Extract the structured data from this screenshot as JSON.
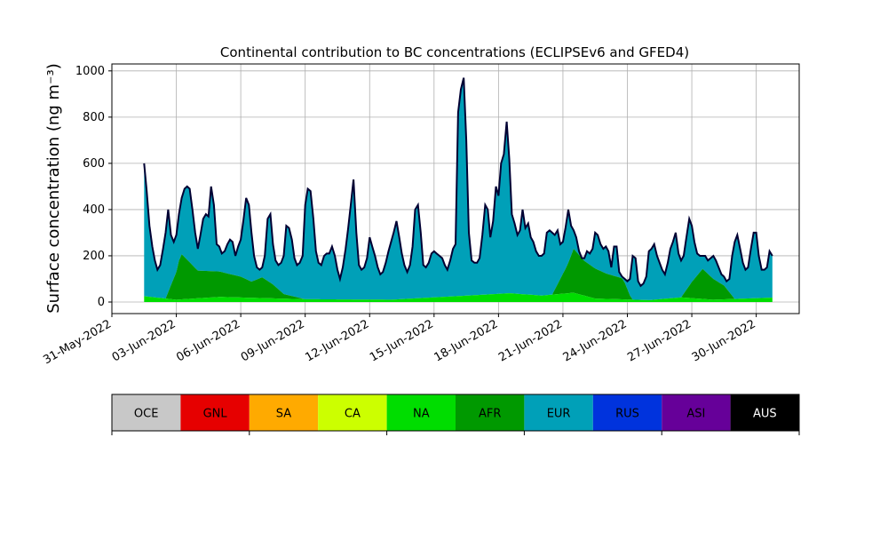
{
  "chart_data": {
    "type": "area",
    "stacked": true,
    "title": "Continental contribution to BC concentrations (ECLIPSEv6 and GFED4)",
    "ylabel": "Surface concentration (ng m⁻³)",
    "xlabel": "",
    "ylim": [
      -50,
      1030
    ],
    "yticks": [
      0,
      200,
      400,
      600,
      800,
      1000
    ],
    "grid": true,
    "x_dates": {
      "start": "2022-06-01T12:00",
      "end": "2022-07-01T12:00",
      "axis_start": "2022-05-31T00:00",
      "axis_end": "2022-07-02T00:00"
    },
    "xtick_labels": [
      "31-May-2022",
      "03-Jun-2022",
      "06-Jun-2022",
      "09-Jun-2022",
      "12-Jun-2022",
      "15-Jun-2022",
      "18-Jun-2022",
      "21-Jun-2022",
      "24-Jun-2022",
      "27-Jun-2022",
      "30-Jun-2022"
    ],
    "xtick_dates": [
      "2022-05-31",
      "2022-06-03",
      "2022-06-06",
      "2022-06-09",
      "2022-06-12",
      "2022-06-15",
      "2022-06-18",
      "2022-06-21",
      "2022-06-24",
      "2022-06-27",
      "2022-06-30"
    ],
    "total_line_color": "#000033",
    "series": [
      {
        "name": "NA",
        "color": "#00dd00",
        "values_by_day": [
          [
            1.5,
            25
          ],
          [
            3.0,
            10
          ],
          [
            5.0,
            22
          ],
          [
            9.0,
            12
          ],
          [
            13.0,
            10
          ],
          [
            17.0,
            30
          ],
          [
            18.5,
            38
          ],
          [
            20.0,
            28
          ],
          [
            21.5,
            40
          ],
          [
            22.5,
            15
          ],
          [
            25.0,
            8
          ],
          [
            26.5,
            20
          ],
          [
            28.0,
            10
          ],
          [
            30.5,
            18
          ],
          [
            31.5,
            22
          ]
        ]
      },
      {
        "name": "AFR",
        "color": "#009900",
        "values_by_day": [
          [
            1.5,
            0
          ],
          [
            2.5,
            0
          ],
          [
            3.0,
            120
          ],
          [
            3.2,
            200
          ],
          [
            3.5,
            170
          ],
          [
            4.0,
            120
          ],
          [
            5.0,
            110
          ],
          [
            6.0,
            90
          ],
          [
            6.5,
            70
          ],
          [
            7.0,
            90
          ],
          [
            7.5,
            60
          ],
          [
            8.0,
            20
          ],
          [
            9.0,
            0
          ],
          [
            20.5,
            0
          ],
          [
            21.2,
            120
          ],
          [
            21.5,
            190
          ],
          [
            22.0,
            150
          ],
          [
            23.0,
            110
          ],
          [
            23.8,
            90
          ],
          [
            24.2,
            0
          ],
          [
            26.5,
            0
          ],
          [
            27.0,
            70
          ],
          [
            27.5,
            130
          ],
          [
            28.0,
            90
          ],
          [
            28.5,
            60
          ],
          [
            29.0,
            0
          ],
          [
            31.5,
            0
          ]
        ]
      },
      {
        "name": "EUR",
        "color": "#00a0b8",
        "values_by_day": []
      }
    ],
    "total_by_day": [
      [
        1.5,
        600
      ],
      [
        1.62,
        480
      ],
      [
        1.75,
        330
      ],
      [
        1.88,
        240
      ],
      [
        2.0,
        180
      ],
      [
        2.12,
        140
      ],
      [
        2.25,
        160
      ],
      [
        2.38,
        230
      ],
      [
        2.5,
        300
      ],
      [
        2.62,
        400
      ],
      [
        2.75,
        290
      ],
      [
        2.88,
        260
      ],
      [
        3.0,
        290
      ],
      [
        3.12,
        380
      ],
      [
        3.25,
        450
      ],
      [
        3.38,
        490
      ],
      [
        3.5,
        500
      ],
      [
        3.62,
        490
      ],
      [
        3.75,
        400
      ],
      [
        3.88,
        300
      ],
      [
        4.0,
        230
      ],
      [
        4.12,
        290
      ],
      [
        4.25,
        360
      ],
      [
        4.38,
        380
      ],
      [
        4.5,
        370
      ],
      [
        4.62,
        500
      ],
      [
        4.75,
        420
      ],
      [
        4.88,
        250
      ],
      [
        5.0,
        240
      ],
      [
        5.12,
        210
      ],
      [
        5.25,
        220
      ],
      [
        5.38,
        250
      ],
      [
        5.5,
        270
      ],
      [
        5.62,
        260
      ],
      [
        5.75,
        200
      ],
      [
        5.88,
        240
      ],
      [
        6.0,
        270
      ],
      [
        6.12,
        350
      ],
      [
        6.25,
        450
      ],
      [
        6.38,
        420
      ],
      [
        6.5,
        300
      ],
      [
        6.62,
        200
      ],
      [
        6.75,
        150
      ],
      [
        6.88,
        140
      ],
      [
        7.0,
        150
      ],
      [
        7.12,
        200
      ],
      [
        7.25,
        360
      ],
      [
        7.38,
        380
      ],
      [
        7.5,
        250
      ],
      [
        7.62,
        180
      ],
      [
        7.75,
        160
      ],
      [
        7.88,
        170
      ],
      [
        8.0,
        200
      ],
      [
        8.12,
        330
      ],
      [
        8.25,
        320
      ],
      [
        8.38,
        270
      ],
      [
        8.5,
        190
      ],
      [
        8.62,
        160
      ],
      [
        8.75,
        170
      ],
      [
        8.88,
        200
      ],
      [
        9.0,
        420
      ],
      [
        9.12,
        490
      ],
      [
        9.25,
        480
      ],
      [
        9.38,
        360
      ],
      [
        9.5,
        220
      ],
      [
        9.62,
        170
      ],
      [
        9.75,
        160
      ],
      [
        9.88,
        200
      ],
      [
        10.0,
        210
      ],
      [
        10.12,
        210
      ],
      [
        10.25,
        240
      ],
      [
        10.38,
        200
      ],
      [
        10.5,
        140
      ],
      [
        10.62,
        100
      ],
      [
        10.75,
        150
      ],
      [
        10.88,
        230
      ],
      [
        11.0,
        320
      ],
      [
        11.12,
        420
      ],
      [
        11.25,
        530
      ],
      [
        11.38,
        300
      ],
      [
        11.5,
        160
      ],
      [
        11.62,
        140
      ],
      [
        11.75,
        150
      ],
      [
        11.88,
        190
      ],
      [
        12.0,
        280
      ],
      [
        12.12,
        240
      ],
      [
        12.25,
        200
      ],
      [
        12.38,
        150
      ],
      [
        12.5,
        120
      ],
      [
        12.62,
        130
      ],
      [
        12.75,
        170
      ],
      [
        12.88,
        220
      ],
      [
        13.0,
        260
      ],
      [
        13.12,
        300
      ],
      [
        13.25,
        350
      ],
      [
        13.38,
        280
      ],
      [
        13.5,
        210
      ],
      [
        13.62,
        160
      ],
      [
        13.75,
        130
      ],
      [
        13.88,
        160
      ],
      [
        14.0,
        240
      ],
      [
        14.12,
        400
      ],
      [
        14.25,
        420
      ],
      [
        14.38,
        300
      ],
      [
        14.5,
        160
      ],
      [
        14.62,
        150
      ],
      [
        14.75,
        170
      ],
      [
        14.88,
        210
      ],
      [
        15.0,
        220
      ],
      [
        15.12,
        210
      ],
      [
        15.25,
        200
      ],
      [
        15.38,
        190
      ],
      [
        15.5,
        160
      ],
      [
        15.62,
        140
      ],
      [
        15.75,
        180
      ],
      [
        15.88,
        230
      ],
      [
        16.0,
        250
      ],
      [
        16.12,
        820
      ],
      [
        16.25,
        920
      ],
      [
        16.38,
        970
      ],
      [
        16.5,
        700
      ],
      [
        16.62,
        300
      ],
      [
        16.75,
        180
      ],
      [
        16.88,
        170
      ],
      [
        17.0,
        170
      ],
      [
        17.12,
        190
      ],
      [
        17.25,
        290
      ],
      [
        17.38,
        420
      ],
      [
        17.5,
        400
      ],
      [
        17.62,
        280
      ],
      [
        17.75,
        350
      ],
      [
        17.88,
        500
      ],
      [
        18.0,
        460
      ],
      [
        18.12,
        600
      ],
      [
        18.25,
        640
      ],
      [
        18.38,
        780
      ],
      [
        18.5,
        620
      ],
      [
        18.62,
        380
      ],
      [
        18.75,
        340
      ],
      [
        18.88,
        290
      ],
      [
        19.0,
        310
      ],
      [
        19.12,
        400
      ],
      [
        19.25,
        320
      ],
      [
        19.38,
        340
      ],
      [
        19.5,
        280
      ],
      [
        19.62,
        260
      ],
      [
        19.75,
        220
      ],
      [
        19.88,
        200
      ],
      [
        20.0,
        200
      ],
      [
        20.12,
        210
      ],
      [
        20.25,
        300
      ],
      [
        20.38,
        310
      ],
      [
        20.5,
        300
      ],
      [
        20.62,
        290
      ],
      [
        20.75,
        310
      ],
      [
        20.88,
        250
      ],
      [
        21.0,
        260
      ],
      [
        21.12,
        320
      ],
      [
        21.25,
        400
      ],
      [
        21.38,
        330
      ],
      [
        21.5,
        310
      ],
      [
        21.62,
        280
      ],
      [
        21.75,
        220
      ],
      [
        21.88,
        190
      ],
      [
        22.0,
        190
      ],
      [
        22.12,
        220
      ],
      [
        22.25,
        210
      ],
      [
        22.38,
        230
      ],
      [
        22.5,
        300
      ],
      [
        22.62,
        290
      ],
      [
        22.75,
        250
      ],
      [
        22.88,
        230
      ],
      [
        23.0,
        240
      ],
      [
        23.12,
        220
      ],
      [
        23.25,
        150
      ],
      [
        23.38,
        240
      ],
      [
        23.5,
        240
      ],
      [
        23.62,
        130
      ],
      [
        23.75,
        110
      ],
      [
        23.88,
        100
      ],
      [
        24.0,
        90
      ],
      [
        24.12,
        100
      ],
      [
        24.25,
        200
      ],
      [
        24.38,
        190
      ],
      [
        24.5,
        90
      ],
      [
        24.62,
        70
      ],
      [
        24.75,
        80
      ],
      [
        24.88,
        110
      ],
      [
        25.0,
        220
      ],
      [
        25.12,
        230
      ],
      [
        25.25,
        250
      ],
      [
        25.38,
        200
      ],
      [
        25.5,
        170
      ],
      [
        25.62,
        140
      ],
      [
        25.75,
        120
      ],
      [
        25.88,
        170
      ],
      [
        26.0,
        230
      ],
      [
        26.12,
        260
      ],
      [
        26.25,
        300
      ],
      [
        26.38,
        210
      ],
      [
        26.5,
        180
      ],
      [
        26.62,
        200
      ],
      [
        26.75,
        280
      ],
      [
        26.88,
        360
      ],
      [
        27.0,
        330
      ],
      [
        27.12,
        260
      ],
      [
        27.25,
        210
      ],
      [
        27.38,
        200
      ],
      [
        27.5,
        200
      ],
      [
        27.62,
        200
      ],
      [
        27.75,
        180
      ],
      [
        27.88,
        190
      ],
      [
        28.0,
        200
      ],
      [
        28.12,
        180
      ],
      [
        28.25,
        150
      ],
      [
        28.38,
        120
      ],
      [
        28.5,
        110
      ],
      [
        28.62,
        90
      ],
      [
        28.75,
        100
      ],
      [
        28.88,
        200
      ],
      [
        29.0,
        260
      ],
      [
        29.12,
        290
      ],
      [
        29.25,
        230
      ],
      [
        29.38,
        170
      ],
      [
        29.5,
        140
      ],
      [
        29.62,
        150
      ],
      [
        29.75,
        230
      ],
      [
        29.88,
        300
      ],
      [
        30.0,
        300
      ],
      [
        30.12,
        200
      ],
      [
        30.25,
        140
      ],
      [
        30.38,
        140
      ],
      [
        30.5,
        150
      ],
      [
        30.62,
        220
      ],
      [
        30.75,
        200
      ]
    ]
  },
  "legend": {
    "items": [
      {
        "label": "OCE",
        "color": "#c8c8c8"
      },
      {
        "label": "GNL",
        "color": "#e60000"
      },
      {
        "label": "SA",
        "color": "#ffaa00"
      },
      {
        "label": "CA",
        "color": "#ccff00"
      },
      {
        "label": "NA",
        "color": "#00dd00"
      },
      {
        "label": "AFR",
        "color": "#009900"
      },
      {
        "label": "EUR",
        "color": "#00a0b8"
      },
      {
        "label": "RUS",
        "color": "#0033dd"
      },
      {
        "label": "ASI",
        "color": "#660099"
      },
      {
        "label": "AUS",
        "color": "#000000"
      }
    ],
    "label_color_light": "#ffffff",
    "label_color_dark": "#000000"
  }
}
